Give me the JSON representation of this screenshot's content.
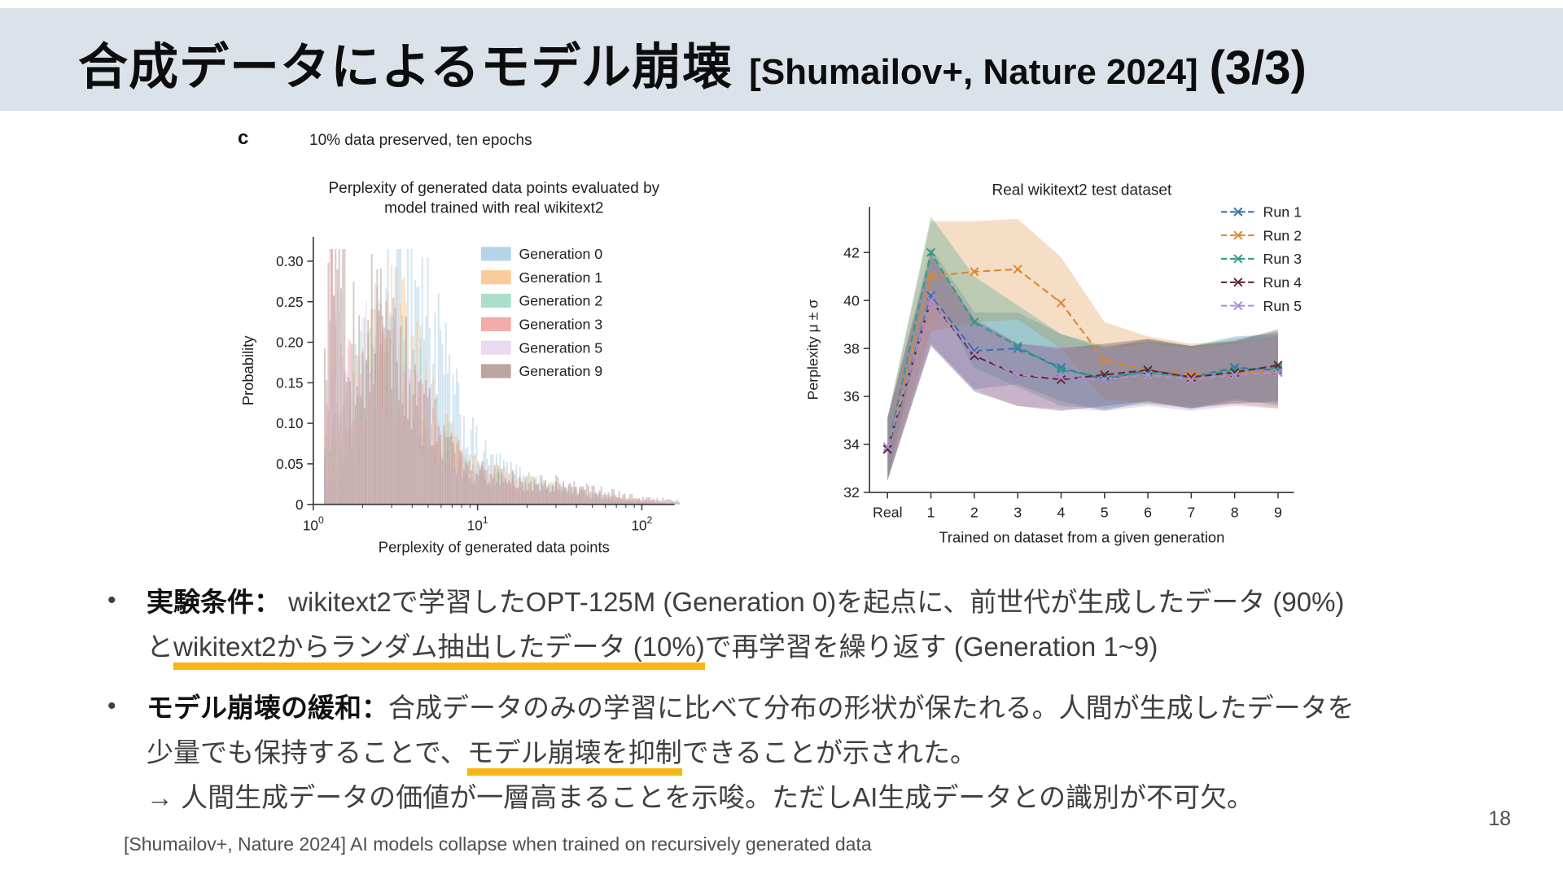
{
  "slide": {
    "bullet_glyph": "•",
    "title": {
      "jp": "合成データによるモデル崩壊",
      "ref": "[Shumailov+, Nature 2024]",
      "page": "(3/3)"
    },
    "colors": {
      "title_band": "#dbe2ea",
      "highlight": "#f7b614"
    },
    "page_number": "18",
    "footer": "[Shumailov+, Nature 2024] AI models collapse when trained on recursively generated data"
  },
  "figure": {
    "panel_label": "c",
    "panel_caption": "10% data preserved, ten epochs"
  },
  "bullets": {
    "b1": {
      "label": "実験条件：",
      "line1": " wikitext2で学習したOPT-125M (Generation 0)を起点に、前世代が生成したデータ (90%)",
      "line2_pre": "と",
      "line2_hl": "wikitext2からランダム抽出したデータ (10%)",
      "line2_post": "で再学習を繰り返す (Generation 1~9)"
    },
    "b2": {
      "label": "モデル崩壊の緩和：",
      "line1": "合成データのみの学習に比べて分布の形状が保たれる。人間が生成したデータを",
      "line2_pre": "少量でも保持することで、",
      "line2_hl": "モデル崩壊を抑制",
      "line2_post": "できることが示された。",
      "line3": "→ 人間生成データの価値が一層高まることを示唆。ただしAI生成データとの識別が不可欠。"
    }
  },
  "chart_data": [
    {
      "type": "histogram",
      "title_line1": "Perplexity of generated data points evaluated by",
      "title_line2": "model trained with real wikitext2",
      "xlabel": "Perplexity of generated data points",
      "ylabel": "Probability",
      "x_scale": "log10",
      "x_ticks": [
        "10^0",
        "10^1",
        "10^2"
      ],
      "x_range_log10": [
        0,
        2.2
      ],
      "y_ticks": [
        0,
        0.05,
        0.1,
        0.15,
        0.2,
        0.25,
        0.3
      ],
      "ymax": 0.33,
      "legend_position": "top-right",
      "series": [
        {
          "name": "Generation 0",
          "color": "#a9cce3",
          "peak_perplexity": 3.6,
          "peak_probability": 0.28,
          "components": [
            {
              "mu": 0.56,
              "sigma": 0.2,
              "amp": 0.275
            },
            {
              "mu": 0.95,
              "sigma": 0.4,
              "amp": 0.05
            }
          ]
        },
        {
          "name": "Generation 1",
          "color": "#f7c488",
          "peak_perplexity": 2.9,
          "peak_probability": 0.21,
          "components": [
            {
              "mu": 0.46,
              "sigma": 0.22,
              "amp": 0.21
            },
            {
              "mu": 1.0,
              "sigma": 0.45,
              "amp": 0.04
            }
          ]
        },
        {
          "name": "Generation 2",
          "color": "#9ed9c1",
          "peak_perplexity": 2.7,
          "peak_probability": 0.19,
          "components": [
            {
              "mu": 0.43,
              "sigma": 0.24,
              "amp": 0.19
            },
            {
              "mu": 1.05,
              "sigma": 0.45,
              "amp": 0.035
            }
          ]
        },
        {
          "name": "Generation 3",
          "color": "#f19e99",
          "peak_perplexity": 2.5,
          "peak_probability": 0.2,
          "components": [
            {
              "mu": 0.4,
              "sigma": 0.25,
              "amp": 0.195
            },
            {
              "mu": 0.115,
              "sigma": 0.018,
              "amp": 0.27
            },
            {
              "mu": 1.05,
              "sigma": 0.5,
              "amp": 0.03
            }
          ]
        },
        {
          "name": "Generation 5",
          "color": "#e3d4f0",
          "peak_perplexity": 2.4,
          "peak_probability": 0.2,
          "components": [
            {
              "mu": 0.38,
              "sigma": 0.26,
              "amp": 0.2
            },
            {
              "mu": 0.14,
              "sigma": 0.015,
              "amp": 0.18
            },
            {
              "mu": 1.1,
              "sigma": 0.5,
              "amp": 0.03
            }
          ]
        },
        {
          "name": "Generation 9",
          "color": "#b09490",
          "peak_perplexity": 2.2,
          "peak_probability": 0.3,
          "components": [
            {
              "mu": 0.34,
              "sigma": 0.27,
              "amp": 0.225
            },
            {
              "mu": 0.125,
              "sigma": 0.02,
              "amp": 0.3
            },
            {
              "mu": 0.18,
              "sigma": 0.015,
              "amp": 0.22
            },
            {
              "mu": 1.1,
              "sigma": 0.55,
              "amp": 0.035
            }
          ]
        }
      ]
    },
    {
      "type": "line",
      "title": "Real wikitext2 test dataset",
      "xlabel": "Trained on dataset from a given generation",
      "ylabel": "Perplexity μ ± σ",
      "categories": [
        "Real",
        "1",
        "2",
        "3",
        "4",
        "5",
        "6",
        "7",
        "8",
        "9"
      ],
      "ylim": [
        32,
        43.9
      ],
      "y_ticks": [
        32,
        34,
        36,
        38,
        40,
        42
      ],
      "legend_position": "top-right",
      "series": [
        {
          "name": "Run 1",
          "color": "#3a74b0",
          "values": [
            33.8,
            40.2,
            37.9,
            38.0,
            37.2,
            36.7,
            37.1,
            36.8,
            37.2,
            37.1
          ],
          "sigma": [
            1.3,
            2.0,
            1.6,
            1.5,
            1.4,
            1.3,
            1.3,
            1.3,
            1.3,
            1.5
          ]
        },
        {
          "name": "Run 2",
          "color": "#e0862f",
          "values": [
            33.8,
            41.0,
            41.2,
            41.3,
            39.9,
            37.5,
            37.1,
            36.9,
            37.0,
            37.0
          ],
          "sigma": [
            1.3,
            2.3,
            2.1,
            2.1,
            1.9,
            1.6,
            1.4,
            1.3,
            1.3,
            1.5
          ]
        },
        {
          "name": "Run 3",
          "color": "#2e9e84",
          "values": [
            33.8,
            42.0,
            39.1,
            38.1,
            37.1,
            36.8,
            37.0,
            36.8,
            37.1,
            37.2
          ],
          "sigma": [
            1.3,
            1.5,
            1.9,
            1.7,
            1.5,
            1.3,
            1.3,
            1.3,
            1.3,
            1.5
          ]
        },
        {
          "name": "Run 4",
          "color": "#5c2a39",
          "values": [
            33.8,
            40.0,
            37.7,
            36.9,
            36.7,
            36.9,
            37.1,
            36.8,
            37.0,
            37.3
          ],
          "sigma": [
            1.3,
            1.9,
            1.5,
            1.3,
            1.3,
            1.3,
            1.3,
            1.3,
            1.3,
            1.5
          ]
        },
        {
          "name": "Run 5",
          "color": "#b28ad2",
          "values": [
            33.9,
            40.0,
            37.8,
            36.9,
            36.8,
            36.7,
            36.9,
            36.7,
            36.9,
            37.0
          ],
          "sigma": [
            1.3,
            1.9,
            1.5,
            1.3,
            1.3,
            1.3,
            1.3,
            1.3,
            1.3,
            1.5
          ]
        }
      ]
    }
  ]
}
